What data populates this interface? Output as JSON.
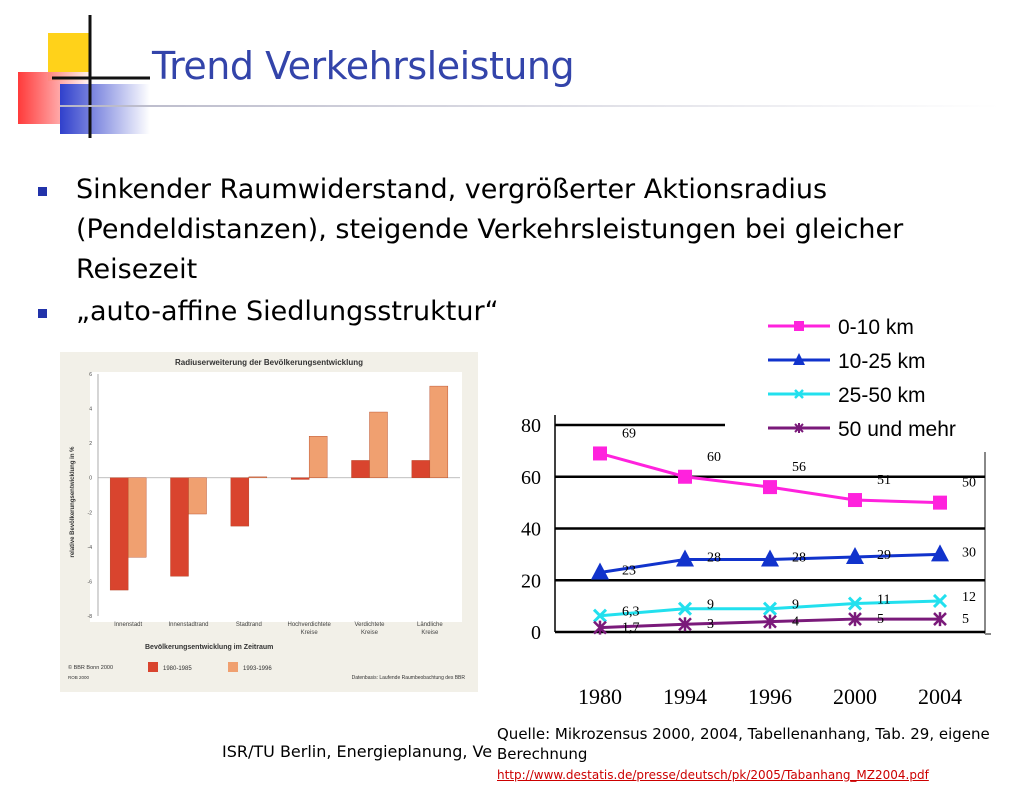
{
  "slide": {
    "title": "Trend Verkehrsleistung",
    "bullets": [
      "Sinkender Raumwiderstand, vergrößerter Aktionsradius (Pendeldistanzen), steigende Verkehrsleistungen bei gleicher Reisezeit",
      "„auto-affine Siedlungsstruktur“"
    ],
    "footer": "ISR/TU Berlin, Energieplanung, Ve",
    "source_text": "Quelle: Mikrozensus 2000, 2004, Tabellenanhang, Tab. 29, eigene Berechnung",
    "source_link": "http://www.destatis.de/presse/deutsch/pk/2005/Tabanhang_MZ2004.pdf"
  },
  "colors": {
    "title": "#3344aa",
    "bullet": "#2233aa",
    "link": "#cc0000"
  },
  "chart_data": [
    {
      "type": "bar",
      "title": "Radiuserweiterung der Bevölkerungsentwicklung",
      "ylabel": "relative Bevölkerungsentwicklung in %",
      "xlabel": "Bevölkerungsentwicklung im Zeitraum",
      "categories": [
        "Innenstadt",
        "Innenstadtrand",
        "Stadtrand",
        "Hochverdichtete Kreise",
        "Verdichtete Kreise",
        "Ländliche Kreise"
      ],
      "series": [
        {
          "name": "1980-1985",
          "color": "#d9442e",
          "values": [
            -6.5,
            -5.7,
            -2.8,
            -0.1,
            1.0,
            1.0
          ]
        },
        {
          "name": "1993-1996",
          "color": "#f0a070",
          "values": [
            -4.6,
            -2.1,
            0.05,
            2.4,
            3.8,
            5.3
          ]
        }
      ],
      "ylim": [
        -8,
        6
      ],
      "yticks": [
        "6",
        "4",
        "2",
        "0",
        "-2",
        "-4",
        "-6",
        "-8"
      ],
      "credits": [
        "© BBR Bonn 2000",
        "ROB 2000"
      ],
      "datasource": "Datenbasis: Laufende Raumbeobachtung des BBR"
    },
    {
      "type": "line",
      "categories": [
        "1980",
        "1994",
        "1996",
        "2000",
        "2004"
      ],
      "ylim": [
        0,
        80
      ],
      "yticks": [
        "0",
        "20",
        "40",
        "60",
        "80"
      ],
      "grid": true,
      "legend": "top-right",
      "series": [
        {
          "name": "0-10 km",
          "color": "#ff22dd",
          "marker": "square",
          "values": [
            69,
            60,
            56,
            51,
            50
          ],
          "labels": [
            "69",
            "60",
            "56",
            "51",
            "50"
          ]
        },
        {
          "name": "10-25 km",
          "color": "#1133cc",
          "marker": "triangle",
          "values": [
            23,
            28,
            28,
            29,
            30
          ],
          "labels": [
            "23",
            "28",
            "28",
            "29",
            "30"
          ]
        },
        {
          "name": "25-50 km",
          "color": "#22e0ee",
          "marker": "x",
          "values": [
            6.3,
            9,
            9,
            11,
            12
          ],
          "labels": [
            "6,3",
            "9",
            "9",
            "11",
            "12"
          ]
        },
        {
          "name": "50 und mehr",
          "color": "#7a1a7a",
          "marker": "star",
          "values": [
            1.7,
            3,
            4,
            5,
            5
          ],
          "labels": [
            "1,7",
            "3",
            "4",
            "5",
            "5"
          ]
        }
      ]
    }
  ]
}
